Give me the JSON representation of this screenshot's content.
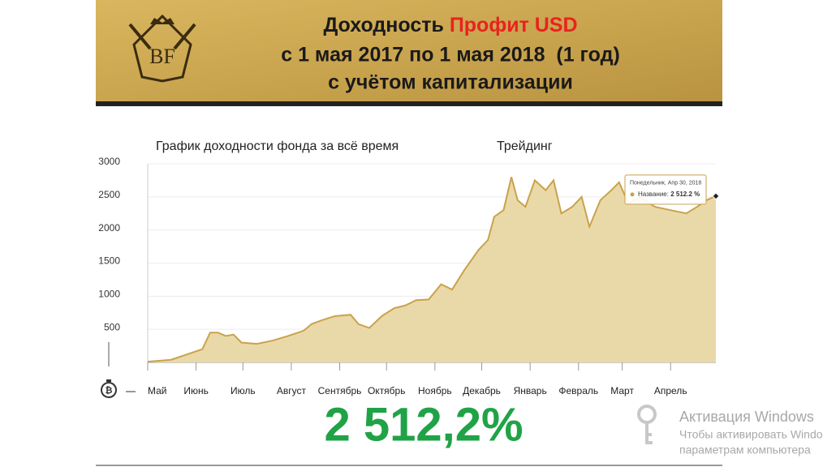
{
  "header": {
    "title_start": "Доходность",
    "title_highlight": "Профит USD",
    "line2": "с 1 мая 2017 по 1 мая 2018  (1 год)",
    "line3": "с учётом капитализации",
    "logo": "BF"
  },
  "chart_data": {
    "type": "area",
    "title": "График доходности фонда за всё время",
    "subtitle": "Трейдинг",
    "x": [
      0,
      15,
      25,
      35,
      40,
      45,
      50,
      55,
      60,
      70,
      80,
      90,
      100,
      105,
      112,
      120,
      130,
      135,
      142,
      150,
      158,
      165,
      172,
      180,
      188,
      195,
      203,
      212,
      218,
      222,
      228,
      233,
      237,
      242,
      248,
      255,
      260,
      265,
      272,
      278,
      283,
      290,
      297,
      302,
      308,
      315,
      325,
      335,
      345,
      352,
      358,
      364
    ],
    "series": [
      {
        "name": "Название",
        "color": "#c9a24c",
        "fill": "#ead9a8",
        "values": [
          10,
          40,
          120,
          200,
          450,
          450,
          400,
          420,
          300,
          280,
          330,
          400,
          480,
          580,
          640,
          700,
          720,
          580,
          520,
          700,
          820,
          860,
          940,
          950,
          1180,
          1100,
          1400,
          1700,
          1850,
          2200,
          2300,
          2800,
          2450,
          2350,
          2750,
          2600,
          2750,
          2250,
          2350,
          2500,
          2050,
          2450,
          2600,
          2720,
          2400,
          2500,
          2350,
          2300,
          2250,
          2350,
          2450,
          2512.2
        ]
      }
    ],
    "xlim": [
      0,
      364
    ],
    "xticks": [
      {
        "value": 0,
        "label": "Май"
      },
      {
        "value": 31,
        "label": "Июнь"
      },
      {
        "value": 61,
        "label": "Июль"
      },
      {
        "value": 92,
        "label": "Август"
      },
      {
        "value": 123,
        "label": "Сентябрь"
      },
      {
        "value": 153,
        "label": "Октябрь"
      },
      {
        "value": 184,
        "label": "Ноябрь"
      },
      {
        "value": 214,
        "label": "Декабрь"
      },
      {
        "value": 245,
        "label": "Январь"
      },
      {
        "value": 276,
        "label": "Февраль"
      },
      {
        "value": 304,
        "label": "Март"
      },
      {
        "value": 335,
        "label": "Апрель"
      }
    ],
    "ylim": [
      0,
      3000
    ],
    "yticks": [
      500,
      1000,
      1500,
      2000,
      2500,
      3000
    ],
    "grid": true,
    "tooltip": {
      "date": "Понедельник, Апр 30, 2018",
      "series_label": "Название:",
      "value_label": "2 512.2 %"
    },
    "result": "2 512,2%",
    "result_color": "#1fa346"
  },
  "watermark": {
    "title": "Активация Windows",
    "line1": "Чтобы активировать Windo",
    "line2": "параметрам компьютера"
  }
}
